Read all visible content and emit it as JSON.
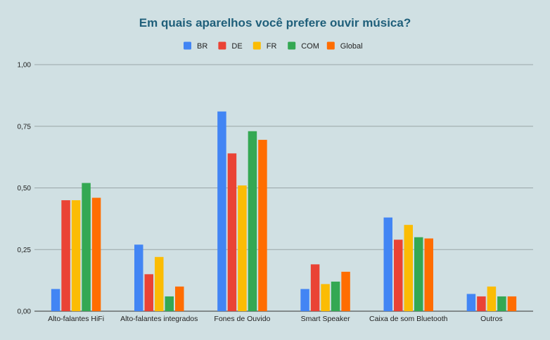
{
  "chart_data": {
    "type": "bar",
    "title": "Em quais aparelhos você prefere ouvir música?",
    "xlabel": "",
    "ylabel": "",
    "ylim": [
      0,
      1
    ],
    "yticks": [
      "0,00",
      "0,25",
      "0,50",
      "0,75",
      "1,00"
    ],
    "ytick_values": [
      0,
      0.25,
      0.5,
      0.75,
      1.0
    ],
    "grid": true,
    "legend_position": "top",
    "categories": [
      "Alto-falantes HiFi",
      "Alto-falantes integrados",
      "Fones de Ouvido",
      "Smart Speaker",
      "Caixa de som Bluetooth",
      "Outros"
    ],
    "series": [
      {
        "name": "BR",
        "color": "#4285f4",
        "values": [
          0.09,
          0.27,
          0.81,
          0.09,
          0.38,
          0.07
        ]
      },
      {
        "name": "DE",
        "color": "#ea4335",
        "values": [
          0.45,
          0.15,
          0.64,
          0.19,
          0.29,
          0.06
        ]
      },
      {
        "name": "FR",
        "color": "#fbbc04",
        "values": [
          0.45,
          0.22,
          0.51,
          0.11,
          0.35,
          0.1
        ]
      },
      {
        "name": "COM",
        "color": "#34a853",
        "values": [
          0.52,
          0.06,
          0.73,
          0.12,
          0.3,
          0.06
        ]
      },
      {
        "name": "Global",
        "color": "#ff6d01",
        "values": [
          0.46,
          0.1,
          0.695,
          0.16,
          0.295,
          0.06
        ]
      }
    ]
  }
}
